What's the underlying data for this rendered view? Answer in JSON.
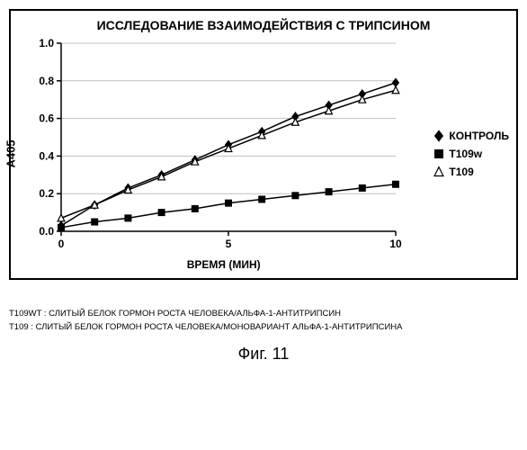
{
  "chart": {
    "type": "line-scatter",
    "title": "ИССЛЕДОВАНИЕ ВЗАИМОДЕЙСТВИЯ С ТРИПСИНОМ",
    "xlabel": "ВРЕМЯ (МИН)",
    "ylabel": "A405",
    "xlim": [
      0,
      10
    ],
    "ylim": [
      0.0,
      1.0
    ],
    "xticks": [
      0,
      5,
      10
    ],
    "yticks": [
      0.0,
      0.2,
      0.4,
      0.6,
      0.8,
      1.0
    ],
    "ytick_labels_precision": 1,
    "background_color": "#ffffff",
    "grid_color": "#bfbfbf",
    "axis_color": "#000000",
    "series": [
      {
        "name": "КОНТРОЛЬ",
        "marker": "diamond",
        "marker_fill": "#000000",
        "line_color": "#000000",
        "x": [
          0,
          1,
          2,
          3,
          4,
          5,
          6,
          7,
          8,
          9,
          10
        ],
        "y": [
          0.03,
          0.14,
          0.23,
          0.3,
          0.38,
          0.46,
          0.53,
          0.61,
          0.67,
          0.73,
          0.79
        ]
      },
      {
        "name": "T109w",
        "marker": "square",
        "marker_fill": "#000000",
        "line_color": "#000000",
        "x": [
          0,
          1,
          2,
          3,
          4,
          5,
          6,
          7,
          8,
          9,
          10
        ],
        "y": [
          0.02,
          0.05,
          0.07,
          0.1,
          0.12,
          0.15,
          0.17,
          0.19,
          0.21,
          0.23,
          0.25
        ]
      },
      {
        "name": "T109",
        "marker": "triangle",
        "marker_fill": "#ffffff",
        "line_color": "#000000",
        "x": [
          0,
          1,
          2,
          3,
          4,
          5,
          6,
          7,
          8,
          9,
          10
        ],
        "y": [
          0.07,
          0.14,
          0.22,
          0.29,
          0.37,
          0.44,
          0.51,
          0.58,
          0.64,
          0.7,
          0.75
        ]
      }
    ],
    "marker_size": 7,
    "line_width": 1.5,
    "title_fontsize": 14,
    "label_fontsize": 13,
    "tick_fontsize": 12
  },
  "footnotes": {
    "line1_key": "T109WT :",
    "line1_text": "СЛИТЫЙ БЕЛОК ГОРМОН РОСТА ЧЕЛОВЕКА/АЛЬФА-1-АНТИТРИПСИН",
    "line2_key": "T109 :",
    "line2_text": "СЛИТЫЙ БЕЛОК ГОРМОН РОСТА ЧЕЛОВЕКА/МОНОВАРИАНТ АЛЬФА-1-АНТИТРИПСИНА"
  },
  "caption": "Фиг. 11"
}
